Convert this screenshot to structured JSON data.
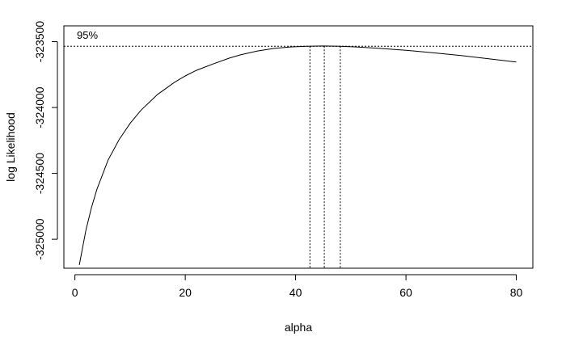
{
  "chart_data": {
    "type": "line",
    "title": "",
    "xlabel": "alpha",
    "ylabel": "log Likelihood",
    "xlim": [
      -2,
      83
    ],
    "ylim": [
      -325220,
      -323380
    ],
    "x_ticks": [
      0,
      20,
      40,
      60,
      80
    ],
    "y_ticks": [
      -325000,
      -324500,
      -324000,
      -323500
    ],
    "grid": false,
    "series": [
      {
        "x": [
          0.8,
          2,
          3,
          4,
          6,
          8,
          10,
          12,
          15,
          18,
          20,
          22,
          25,
          28,
          30,
          33,
          36,
          39,
          42,
          45,
          48,
          51,
          55,
          60,
          65,
          70,
          75,
          80
        ],
        "y": [
          -325195,
          -324930,
          -324760,
          -324620,
          -324400,
          -324245,
          -324120,
          -324020,
          -323900,
          -323810,
          -323760,
          -323718,
          -323670,
          -323625,
          -323600,
          -323572,
          -323552,
          -323540,
          -323535,
          -323533,
          -323535,
          -323540,
          -323550,
          -323565,
          -323585,
          -323605,
          -323630,
          -323655
        ]
      }
    ],
    "ci": {
      "label": "95%",
      "level_y": -323535,
      "x_lower": 42.6,
      "x_mle": 45.2,
      "x_upper": 48.1
    }
  }
}
